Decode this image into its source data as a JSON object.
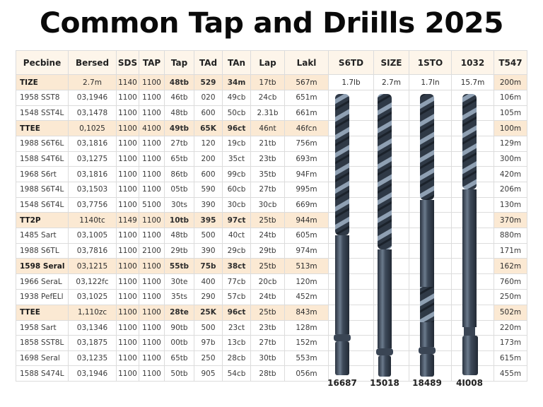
{
  "title": "Common Tap and Driills 2025",
  "colors": {
    "header_bg": "#fdf5ea",
    "group_row_bg": "#fbe9d3",
    "grid_line": "#dcdcdc",
    "drill_steel": "#3b4656"
  },
  "table": {
    "headers": [
      "Pecbine",
      "Bersed",
      "SDS",
      "TAP",
      "Tap",
      "TAd",
      "TAn",
      "Lap",
      "Lakl",
      "S6TD",
      "SIZE",
      "1STO",
      "1032",
      "T547"
    ],
    "rows": [
      {
        "type": "group",
        "cells": [
          "TIZE",
          "2.7m",
          "1140",
          "1100",
          "48tb",
          "529",
          "34m",
          "17tb",
          "567m",
          "1.7lb",
          "2.7m",
          "1.7ln",
          "15.7m",
          "200m"
        ]
      },
      {
        "type": "data",
        "cells": [
          "1958 SST8",
          "03,1946",
          "1100",
          "1100",
          "46tb",
          "020",
          "49cb",
          "24cb",
          "651m",
          "",
          "",
          "",
          "",
          "106m"
        ]
      },
      {
        "type": "data",
        "cells": [
          "1548 SST4L",
          "03,1478",
          "1100",
          "1100",
          "48tb",
          "600",
          "50cb",
          "2.31b",
          "661m",
          "",
          "",
          "",
          "",
          "105m"
        ]
      },
      {
        "type": "group",
        "cells": [
          "TTEE",
          "0,1025",
          "1100",
          "4100",
          "49tb",
          "65K",
          "96ct",
          "46nt",
          "46fcn",
          "",
          "",
          "",
          "",
          "100m"
        ]
      },
      {
        "type": "data",
        "cells": [
          "1988 S6T6L",
          "03,1816",
          "1100",
          "1100",
          "27tb",
          "120",
          "19cb",
          "21tb",
          "756m",
          "",
          "",
          "",
          "",
          "129m"
        ]
      },
      {
        "type": "data",
        "cells": [
          "1588 S4T6L",
          "03,1275",
          "1100",
          "1100",
          "65tb",
          "200",
          "35ct",
          "23tb",
          "693m",
          "",
          "",
          "",
          "",
          "300m"
        ]
      },
      {
        "type": "data",
        "cells": [
          "1968 S6rt",
          "03,1816",
          "1100",
          "1100",
          "86tb",
          "600",
          "99cb",
          "35tb",
          "94Fm",
          "",
          "",
          "",
          "",
          "420m"
        ]
      },
      {
        "type": "data",
        "cells": [
          "1988 S6T4L",
          "03,1503",
          "1100",
          "1100",
          "05tb",
          "590",
          "60cb",
          "27tb",
          "995m",
          "",
          "",
          "",
          "",
          "206m"
        ]
      },
      {
        "type": "data",
        "cells": [
          "1548 S6T4L",
          "03,7756",
          "1100",
          "5100",
          "30ts",
          "390",
          "30cb",
          "30cb",
          "669m",
          "",
          "",
          "",
          "",
          "130m"
        ]
      },
      {
        "type": "group",
        "cells": [
          "TT2P",
          "1140tc",
          "1149",
          "1100",
          "10tb",
          "395",
          "97ct",
          "25tb",
          "944m",
          "",
          "",
          "",
          "",
          "370m"
        ]
      },
      {
        "type": "data",
        "cells": [
          "1485 Sart",
          "03,1005",
          "1100",
          "1100",
          "48tb",
          "500",
          "40ct",
          "24tb",
          "605m",
          "",
          "",
          "",
          "",
          "880m"
        ]
      },
      {
        "type": "data",
        "cells": [
          "1988 S6TL",
          "03,7816",
          "1100",
          "2100",
          "29tb",
          "390",
          "29cb",
          "29tb",
          "974m",
          "",
          "",
          "",
          "",
          "171m"
        ]
      },
      {
        "type": "group",
        "cells": [
          "1598 Seral",
          "03,1215",
          "1100",
          "1100",
          "55tb",
          "75b",
          "38ct",
          "25tb",
          "513m",
          "",
          "",
          "",
          "",
          "162m"
        ]
      },
      {
        "type": "data",
        "cells": [
          "1966 SeraL",
          "03,122fc",
          "1100",
          "1100",
          "30te",
          "400",
          "77cb",
          "20cb",
          "120m",
          "",
          "",
          "",
          "",
          "760m"
        ]
      },
      {
        "type": "data",
        "cells": [
          "1938 PefELl",
          "03,1025",
          "1100",
          "1100",
          "35ts",
          "290",
          "57cb",
          "24tb",
          "452m",
          "",
          "",
          "",
          "",
          "250m"
        ]
      },
      {
        "type": "group",
        "cells": [
          "TTEE",
          "1,110zc",
          "1100",
          "1100",
          "28te",
          "25K",
          "96ct",
          "25tb",
          "843m",
          "",
          "",
          "",
          "",
          "502m"
        ]
      },
      {
        "type": "data",
        "cells": [
          "1958 Sart",
          "03,1346",
          "1100",
          "1100",
          "90tb",
          "500",
          "23ct",
          "23tb",
          "128m",
          "",
          "",
          "",
          "",
          "220m"
        ]
      },
      {
        "type": "data",
        "cells": [
          "1858 SST8L",
          "03,1875",
          "1100",
          "1100",
          "00tb",
          "97b",
          "13cb",
          "27tb",
          "152m",
          "",
          "",
          "",
          "",
          "173m"
        ]
      },
      {
        "type": "data",
        "cells": [
          "1698 Seral",
          "03,1235",
          "1100",
          "1100",
          "65tb",
          "250",
          "28cb",
          "30tb",
          "553m",
          "",
          "",
          "",
          "",
          "615m"
        ]
      },
      {
        "type": "data",
        "cells": [
          "1588 S474L",
          "03,1946",
          "1100",
          "1100",
          "50tb",
          "905",
          "54cb",
          "28tb",
          "056m",
          "",
          "",
          "",
          "",
          "455m"
        ]
      }
    ]
  },
  "drill_bits": [
    {
      "label": "16687",
      "icon": "twist-drill-bit-icon"
    },
    {
      "label": "15018",
      "icon": "twist-drill-bit-icon"
    },
    {
      "label": "18489",
      "icon": "twist-drill-bit-icon"
    },
    {
      "label": "4I008",
      "icon": "twist-drill-bit-icon"
    }
  ]
}
